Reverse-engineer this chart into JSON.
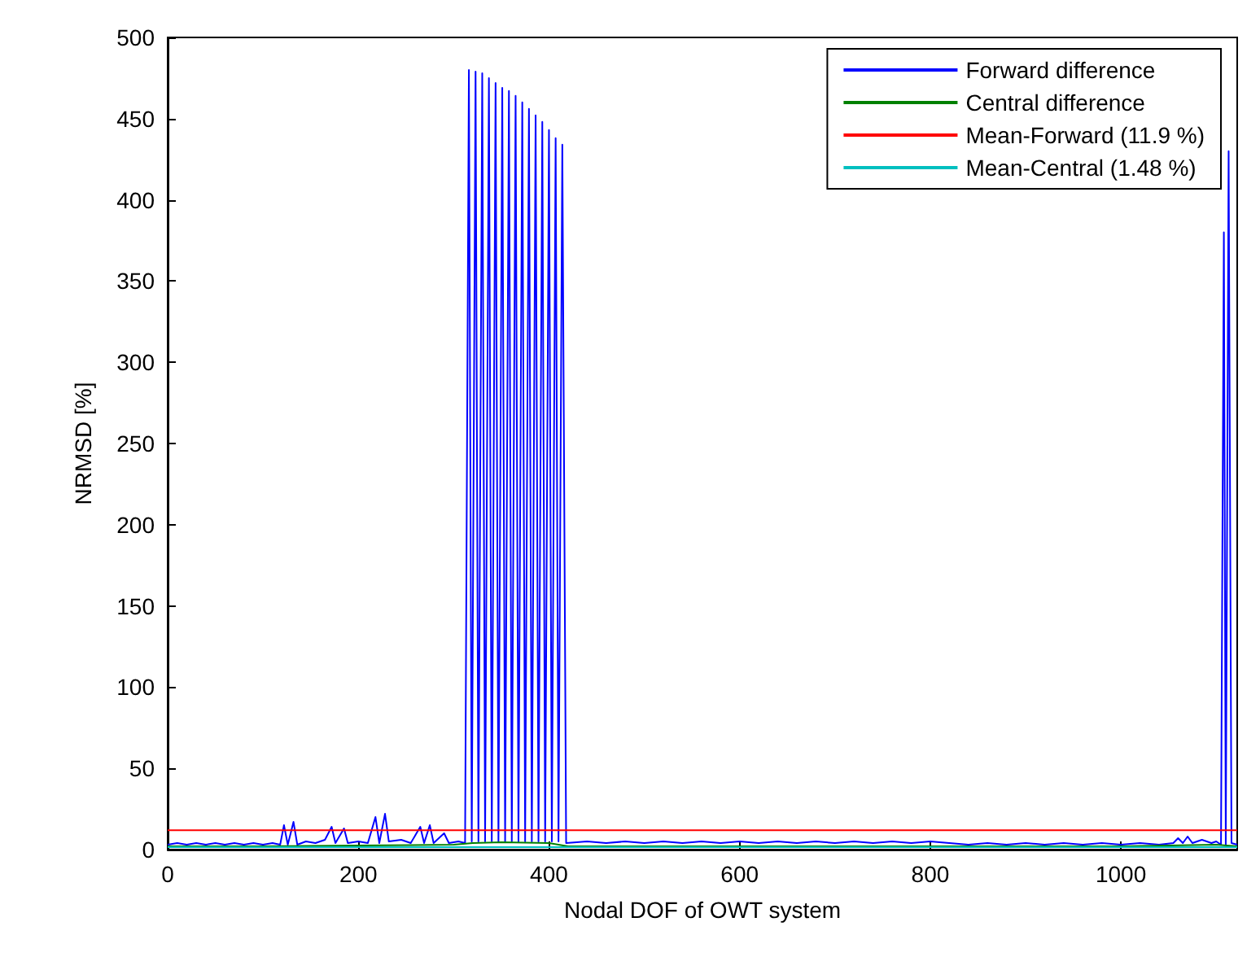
{
  "chart_data": {
    "type": "line",
    "xlabel": "Nodal DOF of OWT system",
    "ylabel": "NRMSD [%]",
    "xlim": [
      0,
      1122
    ],
    "ylim": [
      0,
      500
    ],
    "xticks": [
      0,
      200,
      400,
      600,
      800,
      1000
    ],
    "yticks": [
      0,
      50,
      100,
      150,
      200,
      250,
      300,
      350,
      400,
      450,
      500
    ],
    "grid": false,
    "legend": "top right",
    "marker": "none",
    "line_style": "solid",
    "series": [
      {
        "name": "Forward difference",
        "color": "#0000ff",
        "x": [
          0,
          10,
          20,
          30,
          40,
          50,
          60,
          70,
          80,
          90,
          100,
          110,
          118,
          122,
          126,
          132,
          136,
          145,
          155,
          165,
          172,
          176,
          185,
          189,
          200,
          210,
          218,
          222,
          228,
          232,
          245,
          255,
          265,
          269,
          275,
          279,
          290,
          295,
          305,
          312,
          316,
          319,
          323,
          326,
          330,
          333,
          337,
          340,
          344,
          347,
          351,
          354,
          358,
          361,
          365,
          368,
          372,
          375,
          379,
          382,
          386,
          389,
          393,
          396,
          400,
          403,
          407,
          410,
          414,
          418,
          440,
          460,
          480,
          500,
          520,
          540,
          560,
          580,
          600,
          620,
          640,
          660,
          680,
          700,
          720,
          740,
          760,
          780,
          800,
          820,
          840,
          860,
          880,
          900,
          920,
          940,
          960,
          980,
          1000,
          1020,
          1040,
          1055,
          1060,
          1065,
          1070,
          1075,
          1085,
          1095,
          1100,
          1105,
          1108,
          1110,
          1113,
          1116,
          1122
        ],
        "values": [
          3,
          4,
          3,
          4,
          3,
          4,
          3,
          4,
          3,
          4,
          3,
          4,
          3,
          15,
          3,
          17,
          3,
          5,
          4,
          6,
          14,
          4,
          13,
          4,
          5,
          4,
          20,
          4,
          22,
          5,
          6,
          4,
          14,
          4,
          15,
          4,
          10,
          4,
          5,
          4,
          480,
          5,
          479,
          5,
          478,
          5,
          475,
          5,
          472,
          5,
          469,
          5,
          467,
          5,
          464,
          5,
          460,
          5,
          456,
          5,
          452,
          5,
          448,
          5,
          443,
          5,
          438,
          5,
          434,
          4,
          5,
          4,
          5,
          4,
          5,
          4,
          5,
          4,
          5,
          4,
          5,
          4,
          5,
          4,
          5,
          4,
          5,
          4,
          5,
          4,
          3,
          4,
          3,
          4,
          3,
          4,
          3,
          4,
          3,
          4,
          3,
          4,
          7,
          4,
          8,
          4,
          6,
          4,
          5,
          3,
          380,
          3,
          430,
          4,
          3
        ]
      },
      {
        "name": "Central difference",
        "color": "#008000",
        "x": [
          0,
          100,
          200,
          300,
          320,
          350,
          400,
          420,
          600,
          800,
          1000,
          1100,
          1122
        ],
        "values": [
          2,
          2,
          2.5,
          3,
          4,
          4.5,
          4,
          2,
          2,
          2,
          2,
          3,
          2
        ]
      },
      {
        "name": "Mean-Forward (11.9 %)",
        "color": "#ff0000",
        "x": [
          0,
          1122
        ],
        "values": [
          11.9,
          11.9
        ]
      },
      {
        "name": "Mean-Central (1.48 %)",
        "color": "#00bfbf",
        "x": [
          0,
          1122
        ],
        "values": [
          1.48,
          1.48
        ]
      }
    ]
  }
}
